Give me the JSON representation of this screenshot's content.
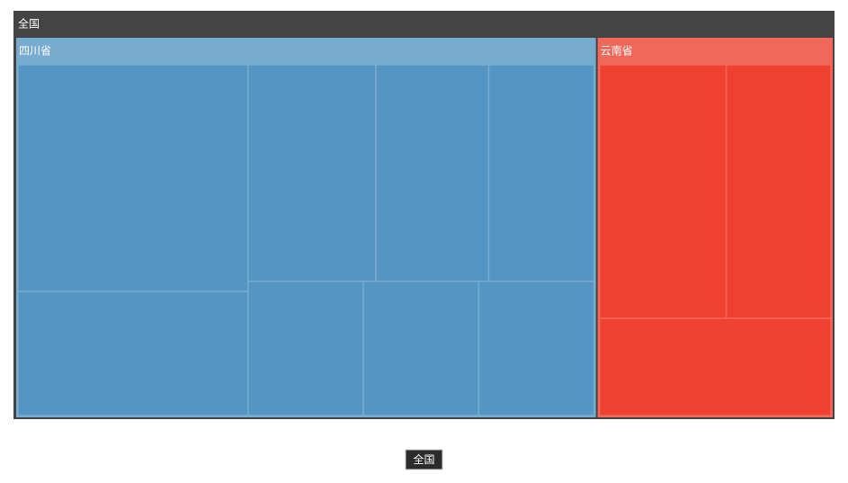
{
  "chart_data": {
    "type": "treemap",
    "root": "全国",
    "header_color": "#444444",
    "children": [
      {
        "name": "四川省",
        "color": "#5495c3",
        "header_color": "#77abd0",
        "values": [
          64,
          35,
          34,
          30,
          28,
          19,
          19,
          19
        ]
      },
      {
        "name": "云南省",
        "color": "#ef4030",
        "header_color": "#f0685a",
        "values": [
          40,
          33,
          28
        ]
      }
    ]
  }
}
